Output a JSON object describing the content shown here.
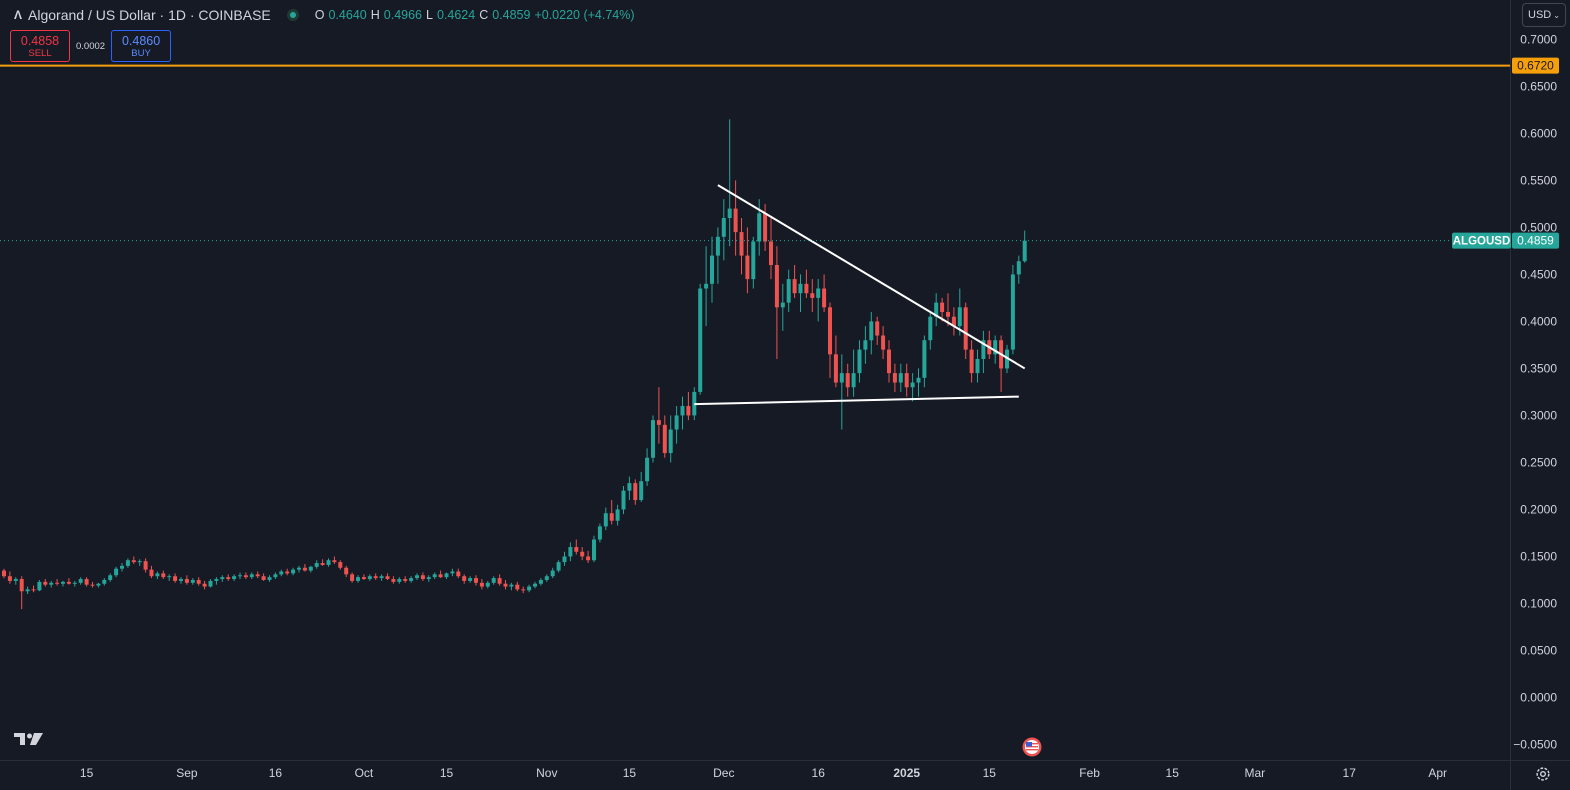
{
  "header": {
    "title": "Algorand / US Dollar · 1D · COINBASE",
    "ohlc": [
      {
        "k": "O",
        "v": "0.4640"
      },
      {
        "k": "H",
        "v": "0.4966"
      },
      {
        "k": "L",
        "v": "0.4624"
      },
      {
        "k": "C",
        "v": "0.4859"
      },
      {
        "k": "",
        "v": "+0.0220 (+4.74%)"
      }
    ]
  },
  "trade": {
    "sell_price": "0.4858",
    "sell_label": "SELL",
    "spread": "0.0002",
    "buy_price": "0.4860",
    "buy_label": "BUY"
  },
  "currency": "USD",
  "colors": {
    "bg": "#161a25",
    "up": "#26a69a",
    "down": "#ef5350",
    "level": "#f59f0b",
    "axis": "#d1d4dc"
  },
  "chart_data": {
    "type": "candlestick",
    "symbol": "ALGOUSD",
    "timeframe": "1D",
    "ylim": [
      -0.055,
      0.705
    ],
    "y_ticks": [
      "0.7000",
      "0.6500",
      "0.6000",
      "0.5500",
      "0.5000",
      "0.4500",
      "0.4000",
      "0.3500",
      "0.3000",
      "0.2500",
      "0.2000",
      "0.1500",
      "0.1000",
      "0.0500",
      "0.0000",
      "−0.0500"
    ],
    "x_ticks": [
      "15",
      "Sep",
      "16",
      "Oct",
      "15",
      "Nov",
      "15",
      "Dec",
      "16",
      "2025",
      "15",
      "Feb",
      "15",
      "Mar",
      "17",
      "Apr"
    ],
    "x_tick_days": [
      14,
      31,
      46,
      61,
      75,
      92,
      106,
      122,
      138,
      153,
      167,
      184,
      198,
      212,
      228,
      243
    ],
    "last_price": "0.4859",
    "last_value": 0.4859,
    "horizontal_level": {
      "label": "0.6720",
      "value": 0.672
    },
    "trendlines": [
      {
        "from": [
          121,
          0.545
        ],
        "to": [
          173,
          0.35
        ]
      },
      {
        "from": [
          117,
          0.312
        ],
        "to": [
          172,
          0.32
        ]
      }
    ],
    "candles": [
      [
        0,
        0.135,
        0.137,
        0.127,
        0.129
      ],
      [
        1,
        0.129,
        0.134,
        0.121,
        0.124
      ],
      [
        2,
        0.124,
        0.128,
        0.12,
        0.126
      ],
      [
        3,
        0.126,
        0.129,
        0.094,
        0.113
      ],
      [
        4,
        0.113,
        0.118,
        0.11,
        0.115
      ],
      [
        5,
        0.115,
        0.119,
        0.112,
        0.114
      ],
      [
        6,
        0.114,
        0.125,
        0.113,
        0.123
      ],
      [
        7,
        0.123,
        0.126,
        0.118,
        0.12
      ],
      [
        8,
        0.12,
        0.124,
        0.117,
        0.122
      ],
      [
        9,
        0.122,
        0.126,
        0.119,
        0.121
      ],
      [
        10,
        0.121,
        0.124,
        0.118,
        0.123
      ],
      [
        11,
        0.123,
        0.127,
        0.12,
        0.121
      ],
      [
        12,
        0.121,
        0.124,
        0.118,
        0.122
      ],
      [
        13,
        0.122,
        0.128,
        0.12,
        0.126
      ],
      [
        14,
        0.126,
        0.128,
        0.118,
        0.12
      ],
      [
        15,
        0.12,
        0.123,
        0.117,
        0.119
      ],
      [
        16,
        0.119,
        0.122,
        0.117,
        0.121
      ],
      [
        17,
        0.121,
        0.127,
        0.119,
        0.125
      ],
      [
        18,
        0.125,
        0.132,
        0.123,
        0.13
      ],
      [
        19,
        0.13,
        0.139,
        0.128,
        0.137
      ],
      [
        20,
        0.137,
        0.143,
        0.134,
        0.14
      ],
      [
        21,
        0.14,
        0.148,
        0.138,
        0.146
      ],
      [
        22,
        0.146,
        0.15,
        0.142,
        0.144
      ],
      [
        23,
        0.144,
        0.147,
        0.14,
        0.145
      ],
      [
        24,
        0.145,
        0.148,
        0.133,
        0.136
      ],
      [
        25,
        0.136,
        0.14,
        0.127,
        0.129
      ],
      [
        26,
        0.129,
        0.134,
        0.126,
        0.132
      ],
      [
        27,
        0.132,
        0.135,
        0.126,
        0.128
      ],
      [
        28,
        0.128,
        0.131,
        0.124,
        0.129
      ],
      [
        29,
        0.129,
        0.132,
        0.122,
        0.124
      ],
      [
        30,
        0.124,
        0.128,
        0.121,
        0.126
      ],
      [
        31,
        0.126,
        0.13,
        0.12,
        0.122
      ],
      [
        32,
        0.122,
        0.127,
        0.12,
        0.125
      ],
      [
        33,
        0.125,
        0.128,
        0.119,
        0.121
      ],
      [
        34,
        0.121,
        0.124,
        0.115,
        0.118
      ],
      [
        35,
        0.118,
        0.126,
        0.117,
        0.124
      ],
      [
        36,
        0.124,
        0.128,
        0.12,
        0.126
      ],
      [
        37,
        0.126,
        0.13,
        0.123,
        0.128
      ],
      [
        38,
        0.128,
        0.131,
        0.124,
        0.126
      ],
      [
        39,
        0.126,
        0.131,
        0.124,
        0.129
      ],
      [
        40,
        0.129,
        0.133,
        0.126,
        0.13
      ],
      [
        41,
        0.13,
        0.133,
        0.126,
        0.128
      ],
      [
        42,
        0.128,
        0.133,
        0.126,
        0.131
      ],
      [
        43,
        0.131,
        0.134,
        0.127,
        0.129
      ],
      [
        44,
        0.129,
        0.132,
        0.124,
        0.125
      ],
      [
        45,
        0.125,
        0.13,
        0.123,
        0.128
      ],
      [
        46,
        0.128,
        0.133,
        0.126,
        0.131
      ],
      [
        47,
        0.131,
        0.136,
        0.129,
        0.134
      ],
      [
        48,
        0.134,
        0.137,
        0.13,
        0.132
      ],
      [
        49,
        0.132,
        0.138,
        0.13,
        0.136
      ],
      [
        50,
        0.136,
        0.14,
        0.133,
        0.138
      ],
      [
        51,
        0.138,
        0.142,
        0.134,
        0.135
      ],
      [
        52,
        0.135,
        0.14,
        0.133,
        0.139
      ],
      [
        53,
        0.139,
        0.146,
        0.137,
        0.143
      ],
      [
        54,
        0.143,
        0.147,
        0.14,
        0.141
      ],
      [
        55,
        0.141,
        0.148,
        0.139,
        0.146
      ],
      [
        56,
        0.146,
        0.15,
        0.142,
        0.144
      ],
      [
        57,
        0.144,
        0.146,
        0.136,
        0.138
      ],
      [
        58,
        0.138,
        0.14,
        0.128,
        0.131
      ],
      [
        59,
        0.131,
        0.133,
        0.122,
        0.124
      ],
      [
        60,
        0.124,
        0.13,
        0.122,
        0.128
      ],
      [
        61,
        0.128,
        0.131,
        0.125,
        0.126
      ],
      [
        62,
        0.126,
        0.131,
        0.124,
        0.129
      ],
      [
        63,
        0.129,
        0.132,
        0.125,
        0.127
      ],
      [
        64,
        0.127,
        0.131,
        0.124,
        0.129
      ],
      [
        65,
        0.129,
        0.132,
        0.125,
        0.126
      ],
      [
        66,
        0.126,
        0.129,
        0.121,
        0.123
      ],
      [
        67,
        0.123,
        0.128,
        0.121,
        0.126
      ],
      [
        68,
        0.126,
        0.129,
        0.122,
        0.124
      ],
      [
        69,
        0.124,
        0.129,
        0.122,
        0.127
      ],
      [
        70,
        0.127,
        0.132,
        0.125,
        0.13
      ],
      [
        71,
        0.13,
        0.133,
        0.124,
        0.126
      ],
      [
        72,
        0.126,
        0.13,
        0.123,
        0.128
      ],
      [
        73,
        0.128,
        0.133,
        0.126,
        0.131
      ],
      [
        74,
        0.131,
        0.135,
        0.127,
        0.128
      ],
      [
        75,
        0.128,
        0.133,
        0.126,
        0.132
      ],
      [
        76,
        0.132,
        0.137,
        0.129,
        0.134
      ],
      [
        77,
        0.134,
        0.137,
        0.127,
        0.129
      ],
      [
        78,
        0.129,
        0.131,
        0.121,
        0.124
      ],
      [
        79,
        0.124,
        0.129,
        0.122,
        0.127
      ],
      [
        80,
        0.127,
        0.13,
        0.119,
        0.122
      ],
      [
        81,
        0.122,
        0.126,
        0.115,
        0.118
      ],
      [
        82,
        0.118,
        0.124,
        0.116,
        0.122
      ],
      [
        83,
        0.122,
        0.129,
        0.12,
        0.127
      ],
      [
        84,
        0.127,
        0.131,
        0.119,
        0.121
      ],
      [
        85,
        0.121,
        0.125,
        0.115,
        0.118
      ],
      [
        86,
        0.118,
        0.122,
        0.114,
        0.12
      ],
      [
        87,
        0.12,
        0.123,
        0.113,
        0.115
      ],
      [
        88,
        0.115,
        0.118,
        0.111,
        0.114
      ],
      [
        89,
        0.114,
        0.12,
        0.112,
        0.118
      ],
      [
        90,
        0.118,
        0.123,
        0.116,
        0.121
      ],
      [
        91,
        0.121,
        0.127,
        0.119,
        0.125
      ],
      [
        92,
        0.125,
        0.131,
        0.123,
        0.129
      ],
      [
        93,
        0.129,
        0.138,
        0.127,
        0.135
      ],
      [
        94,
        0.135,
        0.146,
        0.133,
        0.144
      ],
      [
        95,
        0.144,
        0.155,
        0.14,
        0.15
      ],
      [
        96,
        0.15,
        0.165,
        0.145,
        0.16
      ],
      [
        97,
        0.16,
        0.168,
        0.152,
        0.155
      ],
      [
        98,
        0.155,
        0.16,
        0.146,
        0.15
      ],
      [
        99,
        0.15,
        0.156,
        0.143,
        0.146
      ],
      [
        100,
        0.146,
        0.172,
        0.144,
        0.168
      ],
      [
        101,
        0.168,
        0.185,
        0.165,
        0.182
      ],
      [
        102,
        0.182,
        0.202,
        0.178,
        0.196
      ],
      [
        103,
        0.196,
        0.21,
        0.184,
        0.188
      ],
      [
        104,
        0.188,
        0.205,
        0.183,
        0.2
      ],
      [
        105,
        0.2,
        0.225,
        0.195,
        0.22
      ],
      [
        106,
        0.22,
        0.235,
        0.21,
        0.228
      ],
      [
        107,
        0.228,
        0.232,
        0.205,
        0.21
      ],
      [
        108,
        0.21,
        0.24,
        0.208,
        0.23
      ],
      [
        109,
        0.23,
        0.265,
        0.225,
        0.255
      ],
      [
        110,
        0.255,
        0.3,
        0.25,
        0.295
      ],
      [
        111,
        0.295,
        0.33,
        0.27,
        0.29
      ],
      [
        112,
        0.29,
        0.3,
        0.255,
        0.26
      ],
      [
        113,
        0.26,
        0.3,
        0.25,
        0.285
      ],
      [
        114,
        0.285,
        0.31,
        0.27,
        0.3
      ],
      [
        115,
        0.3,
        0.32,
        0.285,
        0.31
      ],
      [
        116,
        0.31,
        0.325,
        0.295,
        0.3
      ],
      [
        117,
        0.3,
        0.33,
        0.295,
        0.325
      ],
      [
        118,
        0.325,
        0.44,
        0.322,
        0.435
      ],
      [
        119,
        0.435,
        0.48,
        0.395,
        0.44
      ],
      [
        120,
        0.44,
        0.49,
        0.42,
        0.47
      ],
      [
        121,
        0.47,
        0.5,
        0.44,
        0.49
      ],
      [
        122,
        0.49,
        0.53,
        0.465,
        0.51
      ],
      [
        123,
        0.51,
        0.615,
        0.48,
        0.52
      ],
      [
        124,
        0.52,
        0.55,
        0.47,
        0.495
      ],
      [
        125,
        0.495,
        0.51,
        0.45,
        0.47
      ],
      [
        126,
        0.47,
        0.5,
        0.43,
        0.445
      ],
      [
        127,
        0.445,
        0.49,
        0.435,
        0.485
      ],
      [
        128,
        0.485,
        0.53,
        0.47,
        0.515
      ],
      [
        129,
        0.515,
        0.525,
        0.475,
        0.485
      ],
      [
        130,
        0.485,
        0.51,
        0.445,
        0.46
      ],
      [
        131,
        0.46,
        0.48,
        0.36,
        0.415
      ],
      [
        132,
        0.415,
        0.44,
        0.39,
        0.42
      ],
      [
        133,
        0.42,
        0.455,
        0.41,
        0.445
      ],
      [
        134,
        0.445,
        0.46,
        0.425,
        0.43
      ],
      [
        135,
        0.43,
        0.45,
        0.41,
        0.44
      ],
      [
        136,
        0.44,
        0.455,
        0.425,
        0.43
      ],
      [
        137,
        0.43,
        0.445,
        0.41,
        0.425
      ],
      [
        138,
        0.425,
        0.445,
        0.4,
        0.435
      ],
      [
        139,
        0.435,
        0.45,
        0.41,
        0.415
      ],
      [
        140,
        0.415,
        0.42,
        0.34,
        0.365
      ],
      [
        141,
        0.365,
        0.385,
        0.33,
        0.335
      ],
      [
        142,
        0.335,
        0.365,
        0.285,
        0.345
      ],
      [
        143,
        0.345,
        0.355,
        0.32,
        0.33
      ],
      [
        144,
        0.33,
        0.37,
        0.32,
        0.345
      ],
      [
        145,
        0.345,
        0.38,
        0.335,
        0.37
      ],
      [
        146,
        0.37,
        0.395,
        0.355,
        0.38
      ],
      [
        147,
        0.38,
        0.41,
        0.365,
        0.4
      ],
      [
        148,
        0.4,
        0.405,
        0.375,
        0.385
      ],
      [
        149,
        0.385,
        0.395,
        0.36,
        0.37
      ],
      [
        150,
        0.37,
        0.38,
        0.335,
        0.345
      ],
      [
        151,
        0.345,
        0.355,
        0.325,
        0.335
      ],
      [
        152,
        0.335,
        0.355,
        0.325,
        0.345
      ],
      [
        153,
        0.345,
        0.355,
        0.32,
        0.33
      ],
      [
        154,
        0.33,
        0.345,
        0.315,
        0.335
      ],
      [
        155,
        0.335,
        0.35,
        0.32,
        0.34
      ],
      [
        156,
        0.34,
        0.385,
        0.33,
        0.38
      ],
      [
        157,
        0.38,
        0.41,
        0.37,
        0.405
      ],
      [
        158,
        0.405,
        0.43,
        0.395,
        0.42
      ],
      [
        159,
        0.42,
        0.425,
        0.4,
        0.41
      ],
      [
        160,
        0.41,
        0.43,
        0.395,
        0.405
      ],
      [
        161,
        0.405,
        0.415,
        0.385,
        0.395
      ],
      [
        162,
        0.395,
        0.435,
        0.385,
        0.415
      ],
      [
        163,
        0.415,
        0.42,
        0.36,
        0.37
      ],
      [
        164,
        0.37,
        0.38,
        0.335,
        0.345
      ],
      [
        165,
        0.345,
        0.37,
        0.335,
        0.36
      ],
      [
        166,
        0.36,
        0.39,
        0.345,
        0.38
      ],
      [
        167,
        0.38,
        0.39,
        0.36,
        0.365
      ],
      [
        168,
        0.365,
        0.385,
        0.355,
        0.38
      ],
      [
        169,
        0.38,
        0.385,
        0.325,
        0.35
      ],
      [
        170,
        0.35,
        0.375,
        0.345,
        0.37
      ],
      [
        171,
        0.37,
        0.46,
        0.365,
        0.45
      ],
      [
        172,
        0.45,
        0.47,
        0.44,
        0.464
      ],
      [
        173,
        0.464,
        0.4966,
        0.4624,
        0.4859
      ]
    ]
  }
}
